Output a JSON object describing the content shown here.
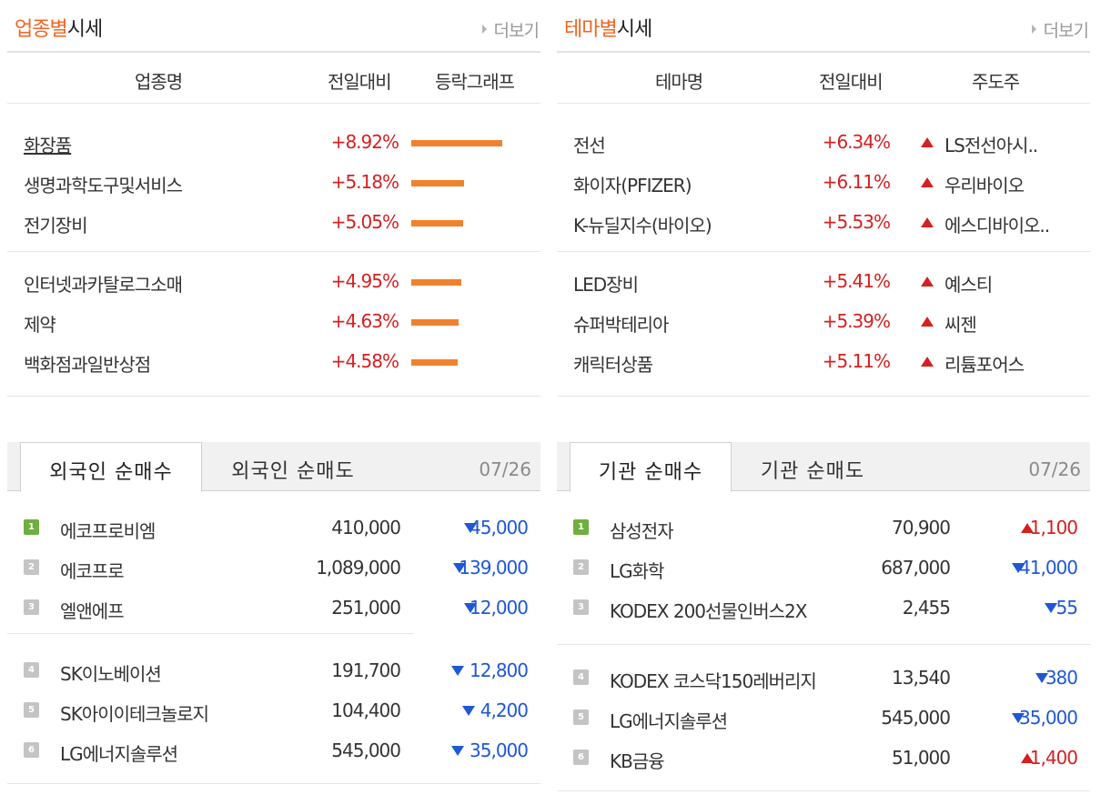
{
  "sector": {
    "title_highlight": "업종별",
    "title_rest": "시세",
    "more": "더보기",
    "col_name": "업종명",
    "col_change": "전일대비",
    "col_graph": "등락그래프",
    "rows": [
      {
        "name": "화장품",
        "change": "+8.92%",
        "pct": 8.92
      },
      {
        "name": "생명과학도구및서비스",
        "change": "+5.18%",
        "pct": 5.18
      },
      {
        "name": "전기장비",
        "change": "+5.05%",
        "pct": 5.05
      },
      {
        "name": "인터넷과카탈로그소매",
        "change": "+4.95%",
        "pct": 4.95
      },
      {
        "name": "제약",
        "change": "+4.63%",
        "pct": 4.63
      },
      {
        "name": "백화점과일반상점",
        "change": "+4.58%",
        "pct": 4.58
      }
    ]
  },
  "theme": {
    "title_highlight": "테마별",
    "title_rest": "시세",
    "more": "더보기",
    "col_name": "테마명",
    "col_change": "전일대비",
    "col_leader": "주도주",
    "rows": [
      {
        "name": "전선",
        "change": "+6.34%",
        "leader": "LS전선아시.."
      },
      {
        "name": "화이자(PFIZER)",
        "change": "+6.11%",
        "leader": "우리바이오"
      },
      {
        "name": "K-뉴딜지수(바이오)",
        "change": "+5.53%",
        "leader": "에스디바이오.."
      },
      {
        "name": "LED장비",
        "change": "+5.41%",
        "leader": "예스티"
      },
      {
        "name": "슈퍼박테리아",
        "change": "+5.39%",
        "leader": "씨젠"
      },
      {
        "name": "캐릭터상품",
        "change": "+5.11%",
        "leader": "리튬포어스"
      }
    ]
  },
  "foreign": {
    "tab_buy": "외국인 순매수",
    "tab_sell": "외국인 순매도",
    "date": "07/26",
    "rows": [
      {
        "rank": "1",
        "name": "에코프로비엠",
        "price": "410,000",
        "diff": "45,000",
        "dir": "down"
      },
      {
        "rank": "2",
        "name": "에코프로",
        "price": "1,089,000",
        "diff": "139,000",
        "dir": "down"
      },
      {
        "rank": "3",
        "name": "엘앤에프",
        "price": "251,000",
        "diff": "12,000",
        "dir": "down"
      },
      {
        "rank": "4",
        "name": "SK이노베이션",
        "price": "191,700",
        "diff": "12,800",
        "dir": "down"
      },
      {
        "rank": "5",
        "name": "SK아이이테크놀로지",
        "price": "104,400",
        "diff": "4,200",
        "dir": "down"
      },
      {
        "rank": "6",
        "name": "LG에너지솔루션",
        "price": "545,000",
        "diff": "35,000",
        "dir": "down"
      }
    ]
  },
  "institution": {
    "tab_buy": "기관 순매수",
    "tab_sell": "기관 순매도",
    "date": "07/26",
    "rows": [
      {
        "rank": "1",
        "name": "삼성전자",
        "price": "70,900",
        "diff": "1,100",
        "dir": "up"
      },
      {
        "rank": "2",
        "name": "LG화학",
        "price": "687,000",
        "diff": "41,000",
        "dir": "down"
      },
      {
        "rank": "3",
        "name": "KODEX 200선물인버스2X",
        "price": "2,455",
        "diff": "55",
        "dir": "down"
      },
      {
        "rank": "4",
        "name": "KODEX 코스닥150레버리지",
        "price": "13,540",
        "diff": "380",
        "dir": "down"
      },
      {
        "rank": "5",
        "name": "LG에너지솔루션",
        "price": "545,000",
        "diff": "35,000",
        "dir": "down"
      },
      {
        "rank": "6",
        "name": "KB금융",
        "price": "51,000",
        "diff": "1,400",
        "dir": "up"
      }
    ]
  },
  "colors": {
    "accent": "#f26522",
    "up": "#d62020",
    "down": "#1f57d6",
    "bar": "#f0822e"
  }
}
